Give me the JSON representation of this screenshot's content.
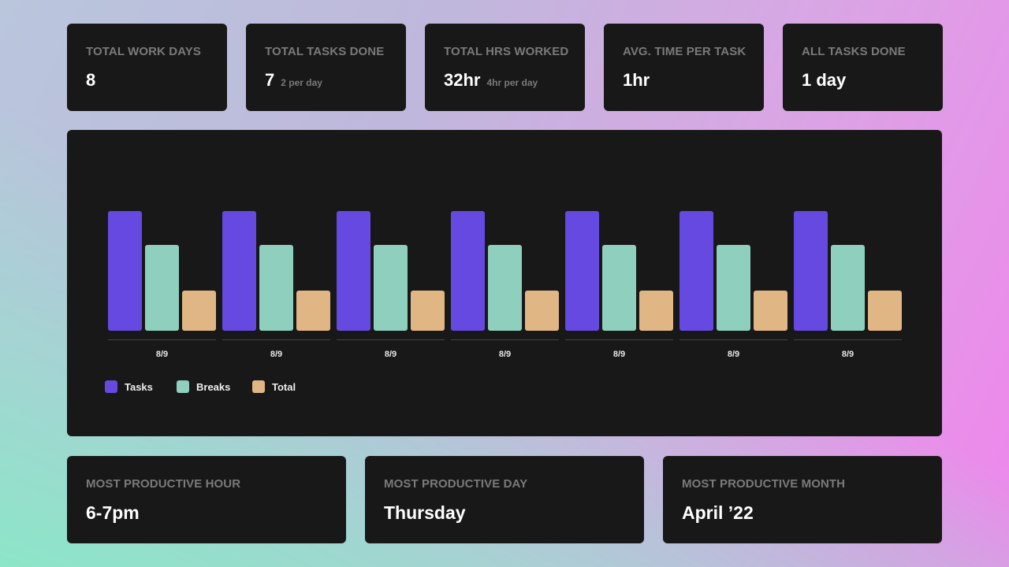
{
  "stats": [
    {
      "label": "TOTAL WORK DAYS",
      "value": "8",
      "sub": ""
    },
    {
      "label": "TOTAL TASKS DONE",
      "value": "7",
      "sub": "2 per day"
    },
    {
      "label": "TOTAL HRS WORKED",
      "value": "32hr",
      "sub": "4hr per day"
    },
    {
      "label": "AVG. TIME PER TASK",
      "value": "1hr",
      "sub": ""
    },
    {
      "label": "ALL TASKS DONE",
      "value": "1 day",
      "sub": ""
    }
  ],
  "bottom": [
    {
      "label": "MOST PRODUCTIVE HOUR",
      "value": "6-7pm"
    },
    {
      "label": "MOST PRODUCTIVE DAY",
      "value": "Thursday"
    },
    {
      "label": "MOST PRODUCTIVE MONTH",
      "value": "April ’22"
    }
  ],
  "chart_data": {
    "type": "bar",
    "categories": [
      "8/9",
      "8/9",
      "8/9",
      "8/9",
      "8/9",
      "8/9",
      "8/9"
    ],
    "series": [
      {
        "name": "Tasks",
        "color": "#6549e0",
        "values": [
          3,
          3,
          3,
          3,
          3,
          3,
          3
        ]
      },
      {
        "name": "Breaks",
        "color": "#8ecfbd",
        "values": [
          2.15,
          2.15,
          2.15,
          2.15,
          2.15,
          2.15,
          2.15
        ]
      },
      {
        "name": "Total",
        "color": "#dfb684",
        "values": [
          1,
          1,
          1,
          1,
          1,
          1,
          1
        ]
      }
    ],
    "ylim": [
      0,
      3
    ],
    "legend": "bottom-left",
    "grid": false
  }
}
